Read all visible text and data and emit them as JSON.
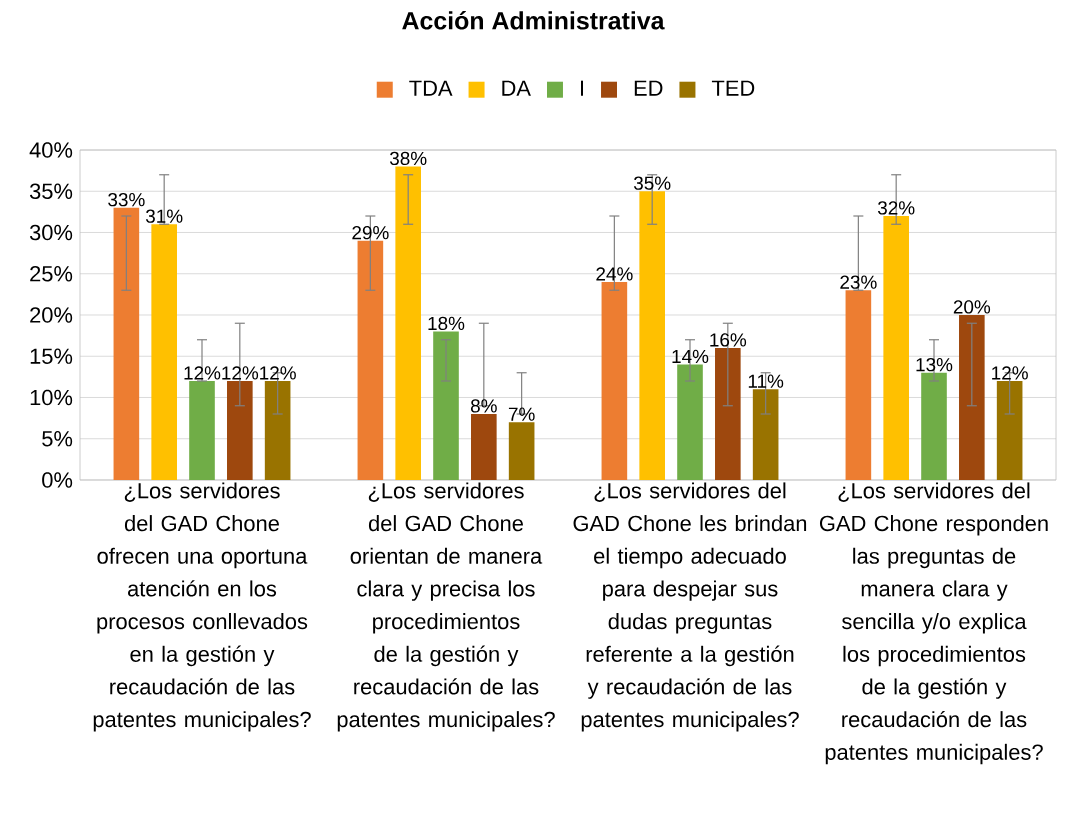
{
  "chart_data": {
    "type": "bar",
    "title": "Acción Administrativa",
    "categories": [
      "¿Los servidores del GAD Chone ofrecen una oportuna atención en los procesos conllevados en la gestión y recaudación de las patentes municipales?",
      "¿Los servidores del GAD Chone orientan de manera clara y precisa los procedimientos de la gestión y recaudación de las patentes municipales?",
      "¿Los servidores del GAD Chone les brindan el tiempo adecuado para despejar sus dudas preguntas referente a la gestión y recaudación de las patentes municipales?",
      "¿Los servidores del GAD Chone responden las preguntas de manera clara y sencilla y/o explica los procedimientos de la gestión y recaudación de las patentes municipales?"
    ],
    "series": [
      {
        "name": "TDA",
        "color": "#ed7d31",
        "values": [
          33,
          29,
          24,
          23
        ],
        "value_labels": [
          "33%",
          "29%",
          "24%",
          "23%"
        ],
        "errors": [
          [
            23,
            32
          ],
          [
            23,
            32
          ],
          [
            23,
            32
          ],
          [
            23,
            32
          ]
        ]
      },
      {
        "name": "DA",
        "color": "#ffc000",
        "values": [
          31,
          38,
          35,
          32
        ],
        "value_labels": [
          "31%",
          "38%",
          "35%",
          "32%"
        ],
        "errors": [
          [
            31,
            37
          ],
          [
            31,
            37
          ],
          [
            31,
            37
          ],
          [
            31,
            37
          ]
        ]
      },
      {
        "name": "I",
        "color": "#70ad47",
        "values": [
          12,
          18,
          14,
          13
        ],
        "value_labels": [
          "12%",
          "18%",
          "14%",
          "13%"
        ],
        "errors": [
          [
            12,
            17
          ],
          [
            12,
            17
          ],
          [
            12,
            17
          ],
          [
            12,
            17
          ]
        ]
      },
      {
        "name": "ED",
        "color": "#9e480e",
        "values": [
          12,
          8,
          16,
          20
        ],
        "value_labels": [
          "12%",
          "8%",
          "16%",
          "20%"
        ],
        "errors": [
          [
            9,
            19
          ],
          [
            9,
            19
          ],
          [
            9,
            19
          ],
          [
            9,
            19
          ]
        ]
      },
      {
        "name": "TED",
        "color": "#997300",
        "values": [
          12,
          7,
          11,
          12
        ],
        "value_labels": [
          "12%",
          "7%",
          "11%",
          "12%"
        ],
        "errors": [
          [
            8,
            13
          ],
          [
            8,
            13
          ],
          [
            8,
            13
          ],
          [
            8,
            13
          ]
        ]
      }
    ],
    "ylim": [
      0,
      40
    ],
    "yticks": [
      {
        "value": 0,
        "label": "0%"
      },
      {
        "value": 5,
        "label": "5%"
      },
      {
        "value": 10,
        "label": "10%"
      },
      {
        "value": 15,
        "label": "15%"
      },
      {
        "value": 20,
        "label": "20%"
      },
      {
        "value": 25,
        "label": "25%"
      },
      {
        "value": 30,
        "label": "30%"
      },
      {
        "value": 35,
        "label": "35%"
      },
      {
        "value": 40,
        "label": "40%"
      }
    ],
    "grid": "y",
    "legend": "top"
  }
}
